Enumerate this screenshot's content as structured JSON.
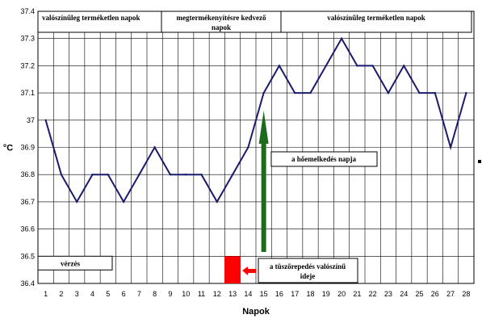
{
  "chart_data": {
    "type": "line",
    "xlabel": "Napok",
    "ylabel": "°C",
    "ylim": [
      36.4,
      37.4
    ],
    "y_ticks": [
      "36.4",
      "36.5",
      "36.6",
      "36.7",
      "36.8",
      "36.9",
      "37",
      "37.1",
      "37.2",
      "37.3",
      "37.4"
    ],
    "x": [
      1,
      2,
      3,
      4,
      5,
      6,
      7,
      8,
      9,
      10,
      11,
      12,
      13,
      14,
      15,
      16,
      17,
      18,
      19,
      20,
      21,
      22,
      23,
      24,
      25,
      26,
      27,
      28
    ],
    "series": [
      {
        "values": [
          37.0,
          36.8,
          36.7,
          36.8,
          36.8,
          36.7,
          36.8,
          36.9,
          36.8,
          36.8,
          36.8,
          36.7,
          36.8,
          36.9,
          37.1,
          37.2,
          37.1,
          37.1,
          37.2,
          37.3,
          37.2,
          37.2,
          37.1,
          37.2,
          37.1,
          37.1,
          36.9,
          37.1
        ],
        "color": "#1a1a6e"
      }
    ],
    "grid": true,
    "annotations": {
      "phase_boxes": [
        {
          "label": "valószínűleg terméketlen napok"
        },
        {
          "label": "megtermékenyítésre kedvező napok"
        },
        {
          "label": "valószínűleg terméketlen napok"
        }
      ],
      "bleeding": "vérzés",
      "temperature_rise": "a hőemelkedés napja",
      "ovulation": "a tüszőrepedés valószínű ideje",
      "ovulation_day": 13,
      "temperature_rise_day": 15
    },
    "colors": {
      "line": "#1a1a6e",
      "grid": "#000000",
      "arrow_green": "#1e6b1e",
      "ovulation_red": "#ff0000"
    }
  }
}
